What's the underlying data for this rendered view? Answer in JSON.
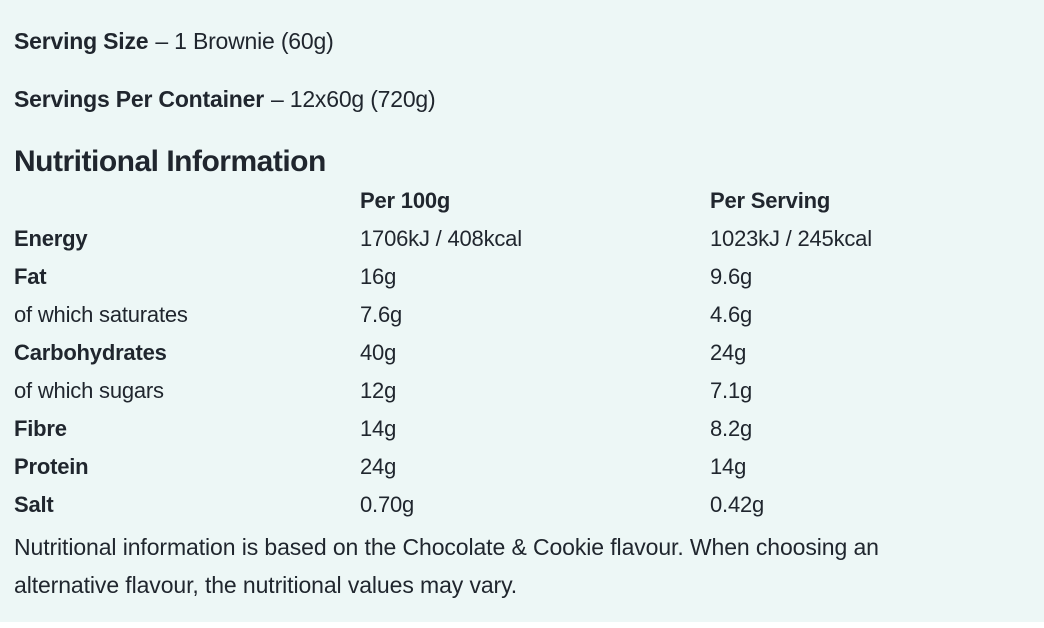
{
  "colors": {
    "panel_background": "#edf7f6",
    "text": "#20262e",
    "bottom_strip": "#ffffff"
  },
  "serving_size": {
    "label": "Serving Size",
    "value": "– 1 Brownie (60g)"
  },
  "servings_per_container": {
    "label": "Servings Per Container",
    "value": "– 12x60g (720g)"
  },
  "section_title": "Nutritional Information",
  "table": {
    "columns": [
      "Per 100g",
      "Per Serving"
    ],
    "rows": [
      {
        "label": "Energy",
        "bold": true,
        "per_100g": "1706kJ / 408kcal",
        "per_serving": "1023kJ / 245kcal"
      },
      {
        "label": "Fat",
        "bold": true,
        "per_100g": "16g",
        "per_serving": "9.6g"
      },
      {
        "label": "of which saturates",
        "bold": false,
        "per_100g": "7.6g",
        "per_serving": "4.6g"
      },
      {
        "label": "Carbohydrates",
        "bold": true,
        "per_100g": "40g",
        "per_serving": "24g"
      },
      {
        "label": "of which sugars",
        "bold": false,
        "per_100g": "12g",
        "per_serving": "7.1g"
      },
      {
        "label": "Fibre",
        "bold": true,
        "per_100g": "14g",
        "per_serving": "8.2g"
      },
      {
        "label": "Protein",
        "bold": true,
        "per_100g": "24g",
        "per_serving": "14g"
      },
      {
        "label": "Salt",
        "bold": true,
        "per_100g": "0.70g",
        "per_serving": "0.42g"
      }
    ]
  },
  "footnote_lines": [
    "Nutritional information is based on the Chocolate & Cookie flavour. When choosing an",
    "alternative flavour, the nutritional values may vary."
  ]
}
